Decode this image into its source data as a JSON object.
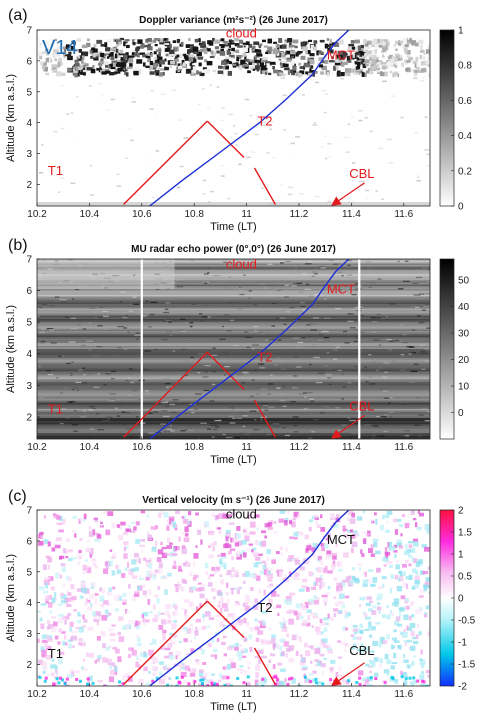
{
  "panels": [
    {
      "label": "(a)",
      "title": "Doppler variance (m²s⁻²) (26 June 2017)",
      "station_label": "V14",
      "ylabel": "Altitude (km a.s.l.)",
      "xlabel": "Time (LT)",
      "colormap": "gray-reversed",
      "clim": [
        0,
        1
      ],
      "colorbar_ticks": [
        0,
        0.2,
        0.4,
        0.6,
        0.8,
        1
      ],
      "annotations": [
        {
          "text": "cloud",
          "x": 10.98,
          "y": 6.75,
          "color": "#e31a1c"
        },
        {
          "text": "MCT",
          "x": 11.36,
          "y": 6.05,
          "color": "#e31a1c"
        },
        {
          "text": "T2",
          "x": 11.07,
          "y": 3.9,
          "color": "#e31a1c"
        },
        {
          "text": "CBL",
          "x": 11.44,
          "y": 2.2,
          "color": "#e31a1c"
        },
        {
          "text": "T1",
          "x": 10.27,
          "y": 2.3,
          "color": "#e31a1c"
        }
      ]
    },
    {
      "label": "(b)",
      "title": "MU radar echo power (0°,0°) (26 June 2017)",
      "ylabel": "Altitude (km a.s.l.)",
      "xlabel": "Time (LT)",
      "colormap": "gray-reversed",
      "clim": [
        -10,
        58
      ],
      "colorbar_ticks": [
        0,
        10,
        20,
        30,
        40,
        50
      ],
      "annotations": [
        {
          "text": "cloud",
          "x": 10.98,
          "y": 6.7,
          "color": "#e31a1c"
        },
        {
          "text": "MCT",
          "x": 11.36,
          "y": 5.9,
          "color": "#e31a1c"
        },
        {
          "text": "T2",
          "x": 11.07,
          "y": 3.75,
          "color": "#e31a1c"
        },
        {
          "text": "CBL",
          "x": 11.44,
          "y": 2.2,
          "color": "#e31a1c"
        },
        {
          "text": "T1",
          "x": 10.27,
          "y": 2.1,
          "color": "#e31a1c"
        }
      ]
    },
    {
      "label": "(c)",
      "title": "Vertical velocity (m s⁻¹) (26 June 2017)",
      "ylabel": "Altitude (km a.s.l.)",
      "xlabel": "Time (LT)",
      "colormap": "cyan-white-magenta",
      "clim": [
        -2,
        2
      ],
      "colorbar_ticks": [
        -2,
        -1.5,
        -1,
        -0.5,
        0,
        0.5,
        1,
        1.5,
        2
      ],
      "annotations": [
        {
          "text": "cloud",
          "x": 10.98,
          "y": 6.72,
          "color": "#111111"
        },
        {
          "text": "MCT",
          "x": 11.36,
          "y": 5.9,
          "color": "#111111"
        },
        {
          "text": "T2",
          "x": 11.07,
          "y": 3.7,
          "color": "#111111"
        },
        {
          "text": "CBL",
          "x": 11.44,
          "y": 2.3,
          "color": "#111111"
        },
        {
          "text": "T1",
          "x": 10.27,
          "y": 2.2,
          "color": "#111111"
        }
      ]
    }
  ],
  "chart_data": {
    "type": "heatmap",
    "x_range": [
      10.2,
      11.7
    ],
    "y_range": [
      1.3,
      7
    ],
    "x_ticks": [
      10.2,
      10.4,
      10.6,
      10.8,
      11,
      11.2,
      11.4,
      11.6
    ],
    "y_ticks": [
      2,
      3,
      4,
      5,
      6,
      7
    ],
    "series": [
      {
        "color": "#e31a1c",
        "style": "solid",
        "points": [
          [
            10.53,
            1.35
          ],
          [
            10.85,
            4.05
          ]
        ]
      },
      {
        "color": "#e31a1c",
        "style": "solid",
        "points": [
          [
            10.85,
            4.05
          ],
          [
            10.99,
            2.87
          ]
        ]
      },
      {
        "color": "#e31a1c",
        "style": "solid",
        "points": [
          [
            11.03,
            2.53
          ],
          [
            11.11,
            1.35
          ]
        ]
      },
      {
        "color": "#1c2fd6",
        "style": "solid",
        "points": [
          [
            10.63,
            1.3
          ],
          [
            10.75,
            2.1
          ],
          [
            10.9,
            3.05
          ],
          [
            11.05,
            4.0
          ],
          [
            11.15,
            4.75
          ],
          [
            11.25,
            5.55
          ],
          [
            11.3,
            6.15
          ],
          [
            11.34,
            6.6
          ],
          [
            11.39,
            7.0
          ]
        ]
      }
    ],
    "arrow": {
      "color": "#e31a1c",
      "from": [
        11.45,
        2.05
      ],
      "to": [
        11.33,
        1.35
      ]
    },
    "white_gaps": [
      10.6,
      11.43
    ]
  }
}
